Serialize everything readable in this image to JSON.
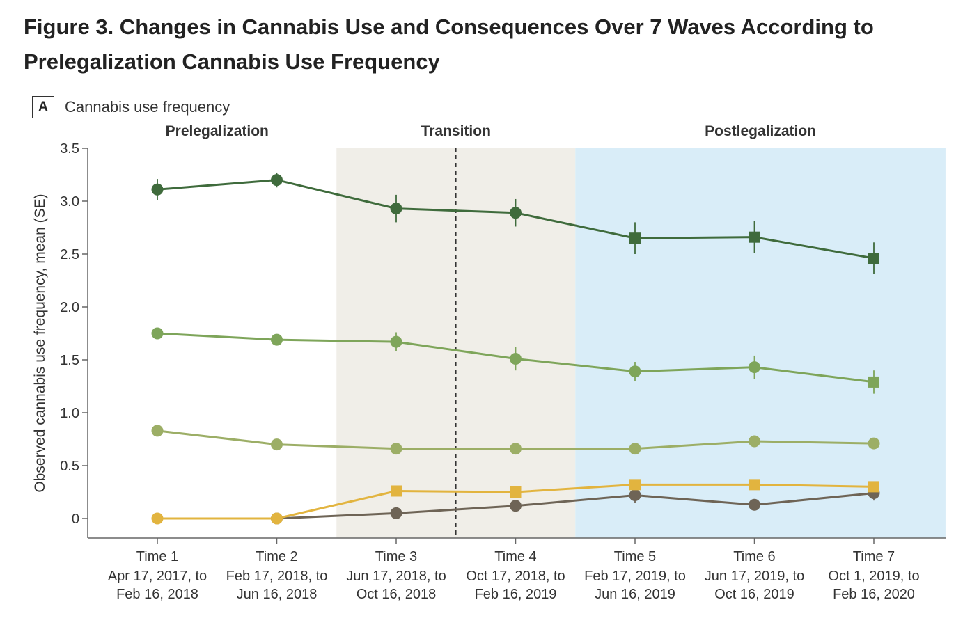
{
  "figure": {
    "title": "Figure 3.  Changes in Cannabis Use and Consequences Over 7 Waves According to Prelegalization Cannabis Use Frequency",
    "panel_letter": "A",
    "panel_title": "Cannabis use frequency"
  },
  "chart_data": {
    "type": "line",
    "title": "Cannabis use frequency",
    "xlabel": "",
    "ylabel": "Observed cannabis use frequency, mean (SE)",
    "ylim": [
      0,
      3.5
    ],
    "yticks": [
      {
        "value": 0,
        "label": "0"
      },
      {
        "value": 0.5,
        "label": "0.5"
      },
      {
        "value": 1.0,
        "label": "1.0"
      },
      {
        "value": 1.5,
        "label": "1.5"
      },
      {
        "value": 2.0,
        "label": "2.0"
      },
      {
        "value": 2.5,
        "label": "2.5"
      },
      {
        "value": 3.0,
        "label": "3.0"
      },
      {
        "value": 3.5,
        "label": "3.5"
      }
    ],
    "grid": false,
    "legend": "none",
    "categories": [
      {
        "line1": "Time 1",
        "line2": "Apr 17, 2017, to",
        "line3": "Feb 16, 2018"
      },
      {
        "line1": "Time 2",
        "line2": "Feb 17, 2018, to",
        "line3": "Jun 16, 2018"
      },
      {
        "line1": "Time 3",
        "line2": "Jun 17, 2018, to",
        "line3": "Oct 16, 2018"
      },
      {
        "line1": "Time 4",
        "line2": "Oct 17, 2018, to",
        "line3": "Feb 16, 2019"
      },
      {
        "line1": "Time 5",
        "line2": "Feb 17, 2019, to",
        "line3": "Jun 16, 2019"
      },
      {
        "line1": "Time 6",
        "line2": "Jun 17, 2019, to",
        "line3": "Oct 16, 2019"
      },
      {
        "line1": "Time 7",
        "line2": "Oct 1, 2019, to",
        "line3": "Feb 16, 2020"
      }
    ],
    "periods": [
      {
        "label": "Prelegalization",
        "start": 0.5,
        "end": 2.5,
        "color": "#ffffff"
      },
      {
        "label": "Transition",
        "start": 2.5,
        "end": 4.5,
        "color": "#f0eee8"
      },
      {
        "label": "Postlegalization",
        "start": 4.5,
        "end": 7.6,
        "color": "#d9edf8"
      }
    ],
    "divider_at": 3.5,
    "series": [
      {
        "name": "series-1",
        "color": "#3f6b3c",
        "values": [
          3.11,
          3.2,
          2.93,
          2.89,
          2.65,
          2.66,
          2.46
        ],
        "se": [
          0.1,
          0.07,
          0.13,
          0.13,
          0.15,
          0.15,
          0.15
        ],
        "markers": [
          "circle",
          "circle",
          "circle",
          "circle",
          "square",
          "square",
          "square"
        ]
      },
      {
        "name": "series-2",
        "color": "#7ea55a",
        "values": [
          1.75,
          1.69,
          1.67,
          1.51,
          1.39,
          1.43,
          1.29
        ],
        "se": [
          0.03,
          0.03,
          0.09,
          0.11,
          0.09,
          0.11,
          0.11
        ],
        "markers": [
          "circle",
          "circle",
          "circle",
          "circle",
          "circle",
          "circle",
          "square"
        ]
      },
      {
        "name": "series-3",
        "color": "#9cae66",
        "values": [
          0.83,
          0.7,
          0.66,
          0.66,
          0.66,
          0.73,
          0.71
        ],
        "se": [
          0.02,
          0.02,
          0.02,
          0.03,
          0.03,
          0.04,
          0.04
        ],
        "markers": [
          "circle",
          "circle",
          "circle",
          "circle",
          "circle",
          "circle",
          "circle"
        ]
      },
      {
        "name": "series-4",
        "color": "#6e6456",
        "values": [
          null,
          0.0,
          0.05,
          0.12,
          0.22,
          0.13,
          0.24
        ],
        "se": [
          null,
          0.0,
          0.02,
          0.03,
          0.07,
          0.05,
          0.07
        ],
        "markers": [
          null,
          "circle",
          "circle",
          "circle",
          "circle",
          "circle",
          "circle"
        ]
      },
      {
        "name": "series-5",
        "color": "#e2b43f",
        "values": [
          0.0,
          0.0,
          0.26,
          0.25,
          0.32,
          0.32,
          0.3
        ],
        "se": [
          0.0,
          0.0,
          0.02,
          0.02,
          0.03,
          0.03,
          0.03
        ],
        "markers": [
          "circle",
          "circle",
          "square",
          "square",
          "square",
          "square",
          "square"
        ]
      }
    ]
  }
}
